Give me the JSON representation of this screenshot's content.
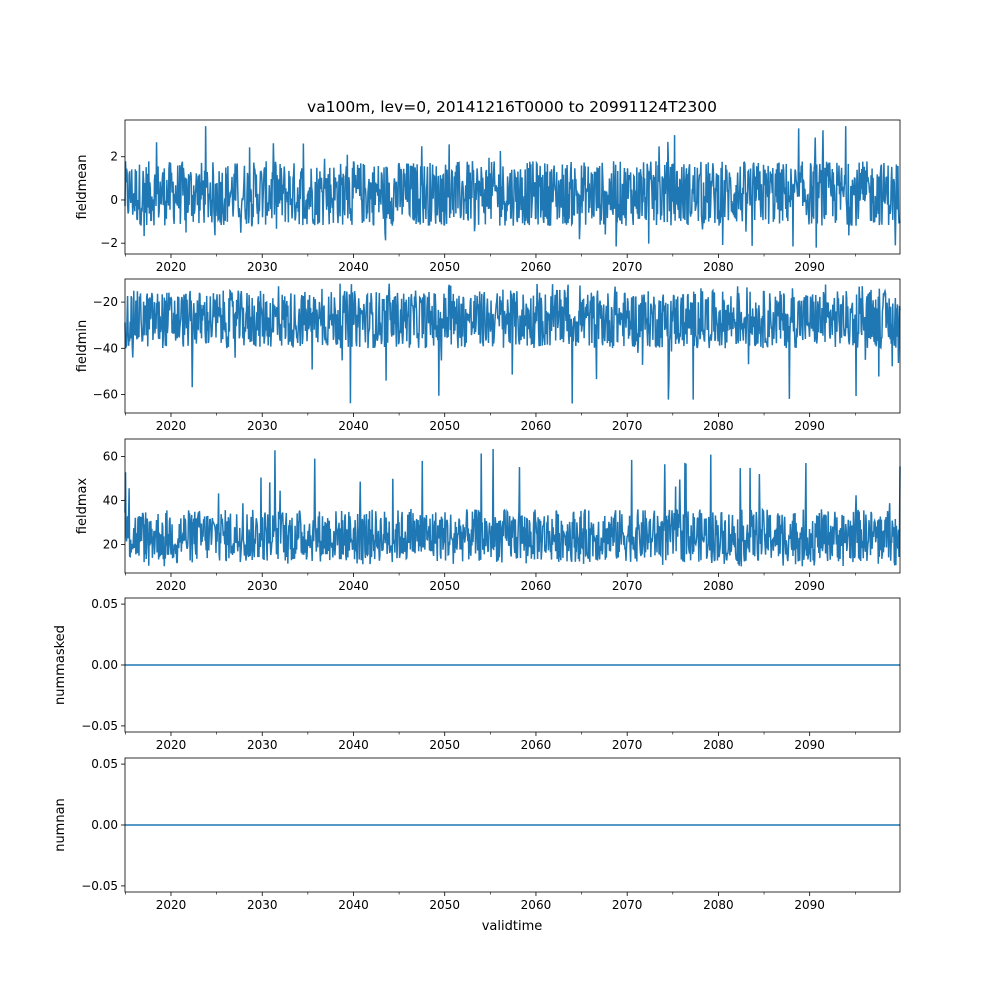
{
  "figure": {
    "title": "va100m, lev=0, 20141216T0000 to 20991124T2300",
    "xlabel": "validtime"
  },
  "colors": {
    "series": "#1f77b4",
    "axes": "#000000",
    "background": "#ffffff"
  },
  "chart_data": [
    {
      "type": "line",
      "name": "fieldmean",
      "ylabel": "fieldmean",
      "xlim": [
        2014.96,
        2099.9
      ],
      "ylim": [
        -2.5,
        3.7
      ],
      "x_ticks": [
        2020,
        2030,
        2040,
        2050,
        2060,
        2070,
        2080,
        2090
      ],
      "y_ticks": [
        -2,
        0,
        2
      ],
      "envelope": {
        "typical_low": -1.2,
        "typical_high": 1.8,
        "min": -2.25,
        "max": 3.45
      },
      "grid": false
    },
    {
      "type": "line",
      "name": "fieldmin",
      "ylabel": "fieldmin",
      "xlim": [
        2014.96,
        2099.9
      ],
      "ylim": [
        -68,
        -10
      ],
      "x_ticks": [
        2020,
        2030,
        2040,
        2050,
        2060,
        2070,
        2080,
        2090
      ],
      "y_ticks": [
        -60,
        -40,
        -20
      ],
      "envelope": {
        "typical_low": -40,
        "typical_high": -15,
        "min": -65,
        "max": -12
      },
      "grid": false
    },
    {
      "type": "line",
      "name": "fieldmax",
      "ylabel": "fieldmax",
      "xlim": [
        2014.96,
        2099.9
      ],
      "ylim": [
        7,
        68
      ],
      "x_ticks": [
        2020,
        2030,
        2040,
        2050,
        2060,
        2070,
        2080,
        2090
      ],
      "y_ticks": [
        20,
        40,
        60
      ],
      "envelope": {
        "typical_low": 12,
        "typical_high": 36,
        "min": 10,
        "max": 65
      },
      "grid": false
    },
    {
      "type": "line",
      "name": "nummasked",
      "ylabel": "nummasked",
      "xlim": [
        2014.96,
        2099.9
      ],
      "ylim": [
        -0.055,
        0.055
      ],
      "x_ticks": [
        2020,
        2030,
        2040,
        2050,
        2060,
        2070,
        2080,
        2090
      ],
      "y_ticks": [
        "-0.05",
        "0.00",
        "0.05"
      ],
      "constant_value": 0,
      "grid": false
    },
    {
      "type": "line",
      "name": "numnan",
      "ylabel": "numnan",
      "xlim": [
        2014.96,
        2099.9
      ],
      "ylim": [
        -0.055,
        0.055
      ],
      "x_ticks": [
        2020,
        2030,
        2040,
        2050,
        2060,
        2070,
        2080,
        2090
      ],
      "y_ticks": [
        "-0.05",
        "0.00",
        "0.05"
      ],
      "constant_value": 0,
      "grid": false
    }
  ]
}
